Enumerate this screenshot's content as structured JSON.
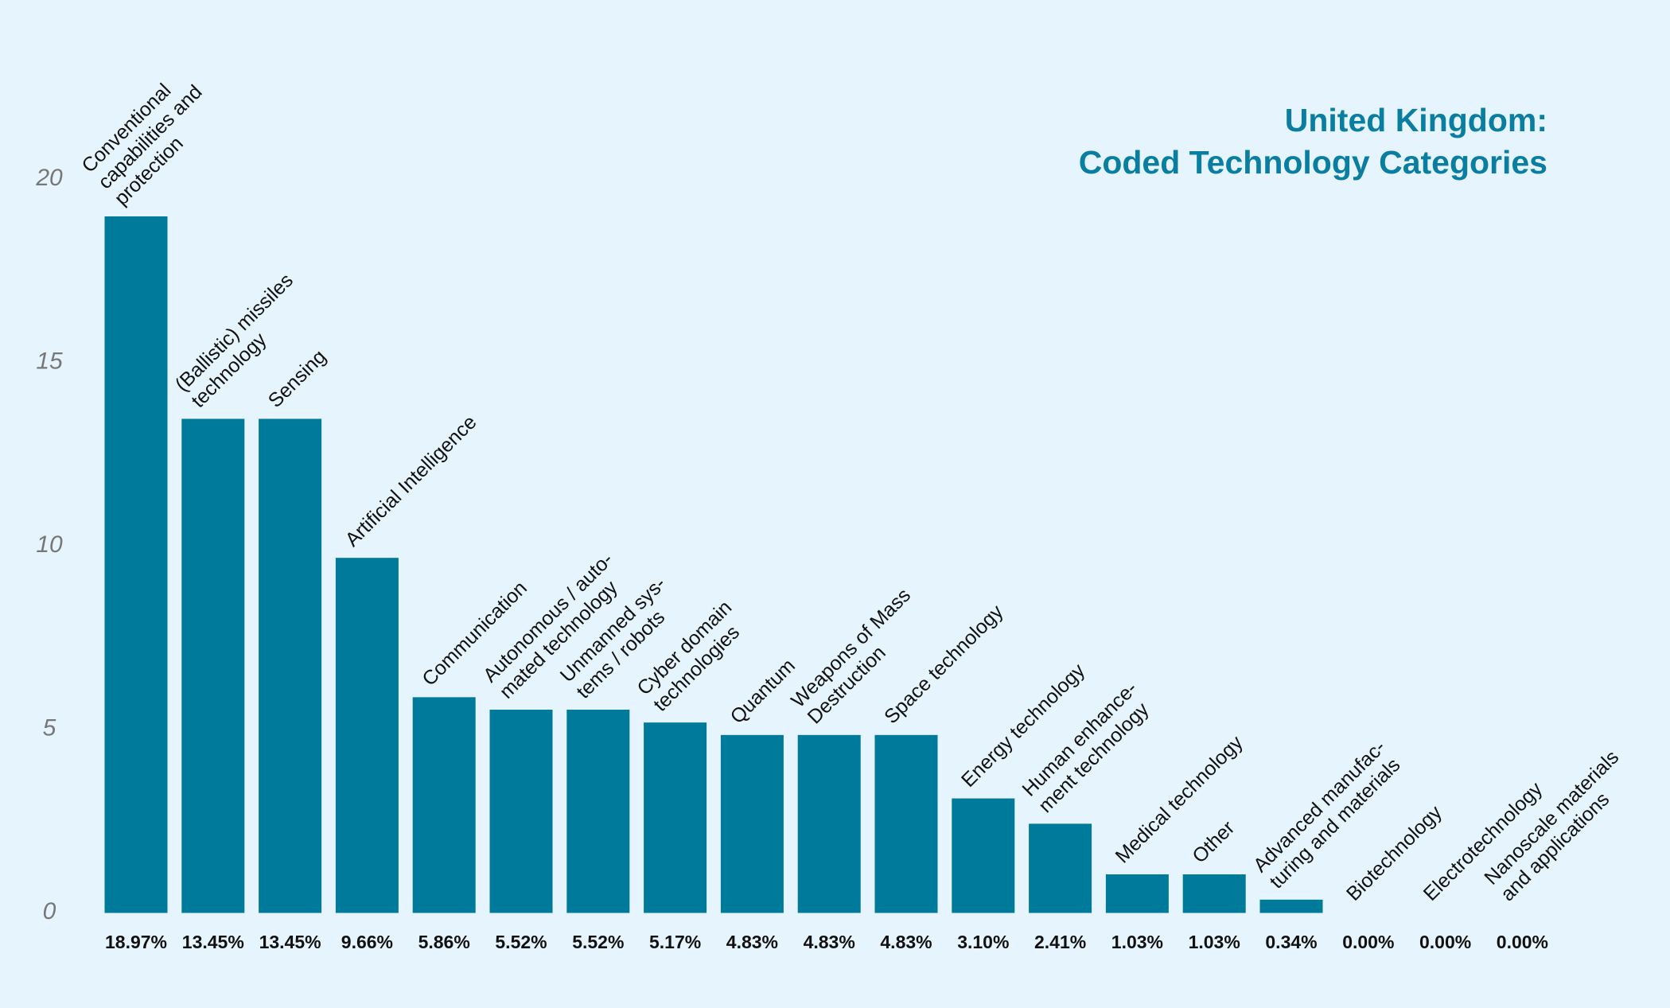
{
  "chart_data": {
    "type": "bar",
    "title": "United Kingdom:\nCoded Technology Categories",
    "categories": [
      "Conventional\ncapabilities and\nprotection",
      "(Ballistic) missiles\ntechnology",
      "Sensing",
      "Artificial Intelligence",
      "Communication",
      "Autonomous / auto-\nmated technology",
      "Unmanned sys-\ntems / robots",
      "Cyber domain\ntechnologies",
      "Quantum",
      "Weapons of Mass\nDestruction",
      "Space technology",
      "Energy technology",
      "Human enhance-\nment technology",
      "Medical technology",
      "Other",
      "Advanced manufac-\nturing and materials",
      "Biotechnology",
      "Electrotechnology",
      "Nanoscale materials\nand applications"
    ],
    "values": [
      18.97,
      13.45,
      13.45,
      9.66,
      5.86,
      5.52,
      5.52,
      5.17,
      4.83,
      4.83,
      4.83,
      3.1,
      2.41,
      1.03,
      1.03,
      0.34,
      0.0,
      0.0,
      0.0
    ],
    "value_labels": [
      "18.97%",
      "13.45%",
      "13.45%",
      "9.66%",
      "5.86%",
      "5.52%",
      "5.52%",
      "5.17%",
      "4.83%",
      "4.83%",
      "4.83%",
      "3.10%",
      "2.41%",
      "1.03%",
      "1.03%",
      "0.34%",
      "0.00%",
      "0.00%",
      "0.00%"
    ],
    "color": "#007a9a",
    "ylim": [
      0,
      20
    ],
    "yticks": [
      0,
      5,
      10,
      15,
      20
    ],
    "grid": false
  }
}
